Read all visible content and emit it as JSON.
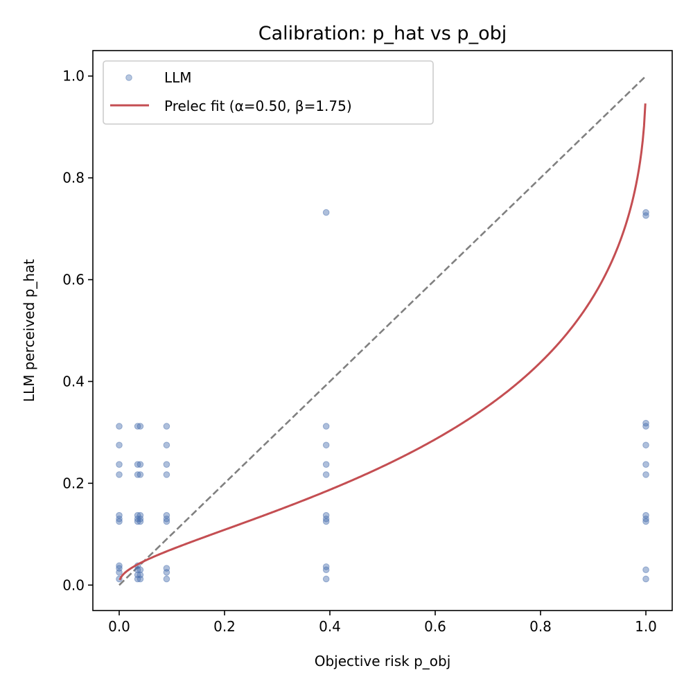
{
  "chart_data": {
    "type": "scatter",
    "title": "Calibration: p_hat vs p_obj",
    "xlabel": "Objective risk p_obj",
    "ylabel": "LLM perceived p_hat",
    "xlim": [
      -0.05,
      1.05
    ],
    "ylim": [
      -0.05,
      1.05
    ],
    "xticks": [
      "0.0",
      "0.2",
      "0.4",
      "0.6",
      "0.8",
      "1.0"
    ],
    "yticks": [
      "0.0",
      "0.2",
      "0.4",
      "0.6",
      "0.8",
      "1.0"
    ],
    "grid": false,
    "legend_position": "top-left",
    "colors": {
      "scatter": "#4c72b0",
      "fit": "#c44e52",
      "diagonal": "#808080"
    },
    "series": [
      {
        "name": "LLM",
        "kind": "scatter",
        "points": [
          [
            0.0,
            0.012
          ],
          [
            0.0,
            0.025
          ],
          [
            0.0,
            0.033
          ],
          [
            0.0,
            0.038
          ],
          [
            0.0,
            0.125
          ],
          [
            0.0,
            0.13
          ],
          [
            0.0,
            0.137
          ],
          [
            0.0,
            0.217
          ],
          [
            0.0,
            0.237
          ],
          [
            0.0,
            0.275
          ],
          [
            0.0,
            0.312
          ],
          [
            0.035,
            0.012
          ],
          [
            0.035,
            0.02
          ],
          [
            0.035,
            0.03
          ],
          [
            0.035,
            0.038
          ],
          [
            0.035,
            0.125
          ],
          [
            0.035,
            0.13
          ],
          [
            0.035,
            0.137
          ],
          [
            0.035,
            0.217
          ],
          [
            0.035,
            0.237
          ],
          [
            0.035,
            0.312
          ],
          [
            0.04,
            0.012
          ],
          [
            0.04,
            0.02
          ],
          [
            0.04,
            0.03
          ],
          [
            0.04,
            0.125
          ],
          [
            0.04,
            0.13
          ],
          [
            0.04,
            0.137
          ],
          [
            0.04,
            0.217
          ],
          [
            0.04,
            0.237
          ],
          [
            0.04,
            0.312
          ],
          [
            0.09,
            0.012
          ],
          [
            0.09,
            0.025
          ],
          [
            0.09,
            0.033
          ],
          [
            0.09,
            0.125
          ],
          [
            0.09,
            0.13
          ],
          [
            0.09,
            0.137
          ],
          [
            0.09,
            0.217
          ],
          [
            0.09,
            0.237
          ],
          [
            0.09,
            0.275
          ],
          [
            0.09,
            0.312
          ],
          [
            0.393,
            0.012
          ],
          [
            0.393,
            0.03
          ],
          [
            0.393,
            0.036
          ],
          [
            0.393,
            0.125
          ],
          [
            0.393,
            0.13
          ],
          [
            0.393,
            0.137
          ],
          [
            0.393,
            0.217
          ],
          [
            0.393,
            0.237
          ],
          [
            0.393,
            0.275
          ],
          [
            0.393,
            0.312
          ],
          [
            0.393,
            0.732
          ],
          [
            1.0,
            0.012
          ],
          [
            1.0,
            0.03
          ],
          [
            1.0,
            0.125
          ],
          [
            1.0,
            0.13
          ],
          [
            1.0,
            0.137
          ],
          [
            1.0,
            0.217
          ],
          [
            1.0,
            0.237
          ],
          [
            1.0,
            0.275
          ],
          [
            1.0,
            0.312
          ],
          [
            1.0,
            0.318
          ],
          [
            1.0,
            0.726
          ],
          [
            1.0,
            0.732
          ]
        ]
      },
      {
        "name": "Prelec fit (α=0.50, β=1.75)",
        "kind": "line",
        "function": "prelec",
        "alpha": 0.5,
        "beta": 1.75,
        "x_range": [
          0.001,
          0.999
        ]
      },
      {
        "kind": "reference",
        "points": [
          [
            0.0,
            0.0
          ],
          [
            1.0,
            1.0
          ]
        ]
      }
    ]
  }
}
